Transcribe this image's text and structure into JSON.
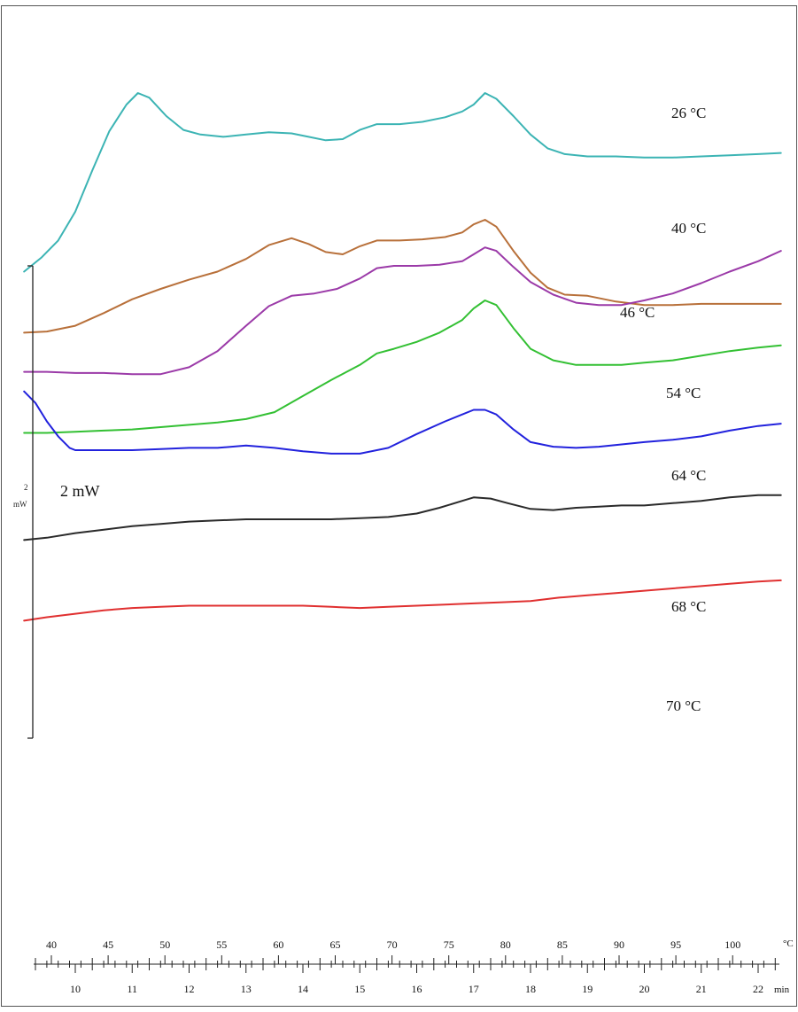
{
  "chart_data": {
    "type": "line",
    "curve_label_suffix": " °C",
    "scale_bar_label": "2 mW",
    "small_scale_marks": [
      "2",
      "mW"
    ],
    "temperature_axis": {
      "unit_label": "°C",
      "ticks": [
        "40",
        "45",
        "50",
        "55",
        "60",
        "65",
        "70",
        "75",
        "80",
        "85",
        "90",
        "95",
        "100"
      ]
    },
    "time_axis": {
      "unit_label": "min",
      "ticks": [
        "10",
        "11",
        "12",
        "13",
        "14",
        "15",
        "16",
        "17",
        "18",
        "19",
        "20",
        "21",
        "22"
      ],
      "xlim": [
        9.1,
        22.4
      ]
    },
    "series": [
      {
        "name": "26",
        "color": "#3cb4b4",
        "x": [
          9.1,
          9.4,
          9.7,
          10.0,
          10.3,
          10.6,
          10.9,
          11.1,
          11.3,
          11.6,
          11.9,
          12.2,
          12.6,
          13.0,
          13.4,
          13.8,
          14.1,
          14.4,
          14.7,
          15.0,
          15.3,
          15.7,
          16.1,
          16.5,
          16.8,
          17.0,
          17.2,
          17.4,
          17.7,
          18.0,
          18.3,
          18.6,
          19.0,
          19.5,
          20.0,
          20.5,
          21.0,
          21.5,
          22.0,
          22.4
        ],
        "y": [
          -0.05,
          0.07,
          0.22,
          0.47,
          0.83,
          1.17,
          1.4,
          1.5,
          1.46,
          1.3,
          1.18,
          1.14,
          1.12,
          1.14,
          1.16,
          1.15,
          1.12,
          1.09,
          1.1,
          1.18,
          1.23,
          1.23,
          1.25,
          1.29,
          1.34,
          1.4,
          1.5,
          1.45,
          1.3,
          1.14,
          1.02,
          0.97,
          0.95,
          0.95,
          0.94,
          0.94,
          0.95,
          0.96,
          0.97,
          0.98
        ]
      },
      {
        "name": "40",
        "color": "#b8703a",
        "x": [
          9.1,
          9.5,
          10.0,
          10.5,
          11.0,
          11.5,
          12.0,
          12.5,
          13.0,
          13.4,
          13.8,
          14.1,
          14.4,
          14.7,
          15.0,
          15.3,
          15.7,
          16.1,
          16.5,
          16.8,
          17.0,
          17.2,
          17.4,
          17.7,
          18.0,
          18.3,
          18.6,
          19.0,
          19.5,
          20.0,
          20.5,
          21.0,
          21.5,
          22.0,
          22.4
        ],
        "y": [
          -0.58,
          -0.57,
          -0.52,
          -0.41,
          -0.29,
          -0.2,
          -0.12,
          -0.05,
          0.06,
          0.18,
          0.24,
          0.19,
          0.12,
          0.1,
          0.17,
          0.22,
          0.22,
          0.23,
          0.25,
          0.29,
          0.36,
          0.4,
          0.34,
          0.13,
          -0.06,
          -0.19,
          -0.25,
          -0.26,
          -0.31,
          -0.34,
          -0.34,
          -0.33,
          -0.33,
          -0.33,
          -0.33
        ]
      },
      {
        "name": "46",
        "color": "#9b3aa8",
        "x": [
          9.1,
          9.5,
          10.0,
          10.5,
          11.0,
          11.5,
          12.0,
          12.5,
          13.0,
          13.4,
          13.8,
          14.2,
          14.6,
          15.0,
          15.3,
          15.6,
          16.0,
          16.4,
          16.8,
          17.0,
          17.2,
          17.4,
          17.7,
          18.0,
          18.4,
          18.8,
          19.2,
          19.6,
          20.0,
          20.5,
          21.0,
          21.5,
          22.0,
          22.4
        ],
        "y": [
          -0.92,
          -0.92,
          -0.93,
          -0.93,
          -0.94,
          -0.94,
          -0.88,
          -0.74,
          -0.52,
          -0.35,
          -0.26,
          -0.24,
          -0.2,
          -0.11,
          -0.02,
          0.0,
          0.0,
          0.01,
          0.04,
          0.1,
          0.16,
          0.13,
          -0.01,
          -0.14,
          -0.25,
          -0.32,
          -0.34,
          -0.34,
          -0.3,
          -0.24,
          -0.15,
          -0.05,
          0.04,
          0.13
        ]
      },
      {
        "name": "54",
        "color": "#33c033",
        "x": [
          9.1,
          9.5,
          10.0,
          10.5,
          11.0,
          11.5,
          12.0,
          12.5,
          13.0,
          13.5,
          14.0,
          14.5,
          15.0,
          15.3,
          15.6,
          16.0,
          16.4,
          16.8,
          17.0,
          17.2,
          17.4,
          17.7,
          18.0,
          18.4,
          18.8,
          19.2,
          19.6,
          20.0,
          20.5,
          21.0,
          21.5,
          22.0,
          22.4
        ],
        "y": [
          -1.45,
          -1.45,
          -1.44,
          -1.43,
          -1.42,
          -1.4,
          -1.38,
          -1.36,
          -1.33,
          -1.27,
          -1.13,
          -0.99,
          -0.86,
          -0.76,
          -0.72,
          -0.66,
          -0.58,
          -0.47,
          -0.37,
          -0.3,
          -0.34,
          -0.54,
          -0.72,
          -0.82,
          -0.86,
          -0.86,
          -0.86,
          -0.84,
          -0.82,
          -0.78,
          -0.74,
          -0.71,
          -0.69
        ]
      },
      {
        "name": "64",
        "color": "#2222dd",
        "x": [
          9.1,
          9.3,
          9.5,
          9.7,
          9.9,
          10.0,
          10.5,
          11.0,
          11.5,
          12.0,
          12.5,
          13.0,
          13.5,
          14.0,
          14.5,
          15.0,
          15.5,
          16.0,
          16.5,
          16.8,
          17.0,
          17.2,
          17.4,
          17.7,
          18.0,
          18.4,
          18.8,
          19.2,
          19.6,
          20.0,
          20.5,
          21.0,
          21.5,
          22.0,
          22.4
        ],
        "y": [
          -1.09,
          -1.19,
          -1.35,
          -1.48,
          -1.58,
          -1.6,
          -1.6,
          -1.6,
          -1.59,
          -1.58,
          -1.58,
          -1.56,
          -1.58,
          -1.61,
          -1.63,
          -1.63,
          -1.58,
          -1.46,
          -1.35,
          -1.29,
          -1.25,
          -1.25,
          -1.29,
          -1.42,
          -1.53,
          -1.57,
          -1.58,
          -1.57,
          -1.55,
          -1.53,
          -1.51,
          -1.48,
          -1.43,
          -1.39,
          -1.37
        ]
      },
      {
        "name": "68",
        "color": "#2a2a2a",
        "x": [
          9.1,
          9.5,
          10.0,
          10.5,
          11.0,
          11.5,
          12.0,
          12.5,
          13.0,
          13.5,
          14.0,
          14.5,
          15.0,
          15.5,
          16.0,
          16.4,
          16.8,
          17.0,
          17.3,
          17.6,
          18.0,
          18.4,
          18.8,
          19.2,
          19.6,
          20.0,
          20.5,
          21.0,
          21.5,
          22.0,
          22.4
        ],
        "y": [
          -2.38,
          -2.36,
          -2.32,
          -2.29,
          -2.26,
          -2.24,
          -2.22,
          -2.21,
          -2.2,
          -2.2,
          -2.2,
          -2.2,
          -2.19,
          -2.18,
          -2.15,
          -2.1,
          -2.04,
          -2.01,
          -2.02,
          -2.06,
          -2.11,
          -2.12,
          -2.1,
          -2.09,
          -2.08,
          -2.08,
          -2.06,
          -2.04,
          -2.01,
          -1.99,
          -1.99
        ]
      },
      {
        "name": "70",
        "color": "#e03030",
        "x": [
          9.1,
          9.5,
          10.0,
          10.5,
          11.0,
          11.5,
          12.0,
          12.5,
          13.0,
          13.5,
          14.0,
          14.5,
          15.0,
          15.5,
          16.0,
          16.5,
          17.0,
          17.5,
          18.0,
          18.5,
          19.0,
          19.5,
          20.0,
          20.5,
          21.0,
          21.5,
          22.0,
          22.4
        ],
        "y": [
          -3.08,
          -3.05,
          -3.02,
          -2.99,
          -2.97,
          -2.96,
          -2.95,
          -2.95,
          -2.95,
          -2.95,
          -2.95,
          -2.96,
          -2.97,
          -2.96,
          -2.95,
          -2.94,
          -2.93,
          -2.92,
          -2.91,
          -2.88,
          -2.86,
          -2.84,
          -2.82,
          -2.8,
          -2.78,
          -2.76,
          -2.74,
          -2.73
        ]
      }
    ]
  }
}
